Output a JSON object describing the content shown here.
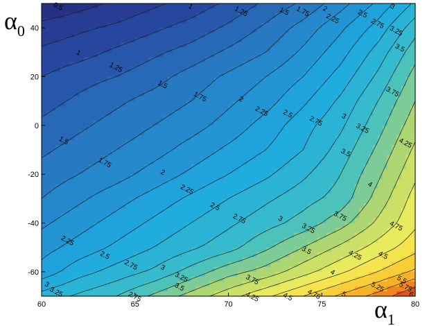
{
  "chart_data": {
    "type": "heatmap",
    "subtype": "filled-contour",
    "title": "",
    "xlabel": {
      "symbol": "α",
      "subscript": "1"
    },
    "ylabel": {
      "symbol": "α",
      "subscript": "0"
    },
    "xlim": [
      60,
      80
    ],
    "ylim": [
      -70,
      50
    ],
    "x_ticks": [
      60,
      65,
      70,
      75,
      80
    ],
    "y_ticks": [
      40,
      20,
      0,
      -20,
      -40,
      -60
    ],
    "grid": false,
    "legend": "none",
    "colormap": "jet",
    "contour_levels": [
      0.5,
      0.75,
      1,
      1.25,
      1.5,
      1.75,
      2,
      2.25,
      2.5,
      2.75,
      3,
      3.25,
      3.5,
      3.75,
      4,
      4.25,
      4.5,
      4.75,
      5,
      5.25,
      5.5,
      5.75,
      6
    ],
    "grid_x": [
      60,
      62,
      64,
      66,
      68,
      70,
      72,
      74,
      76,
      78,
      80
    ],
    "grid_y": [
      -70,
      -60,
      -50,
      -40,
      -30,
      -20,
      -10,
      0,
      10,
      20,
      30,
      40,
      50
    ],
    "z_values": [
      [
        3.1,
        3.3,
        3.5,
        3.8,
        4.1,
        4.4,
        4.7,
        5.0,
        5.3,
        5.6,
        6.0
      ],
      [
        2.6,
        2.9,
        3.1,
        3.3,
        3.6,
        3.9,
        4.1,
        4.4,
        4.7,
        5.0,
        5.3
      ],
      [
        2.4,
        2.6,
        2.8,
        3.0,
        3.2,
        3.4,
        3.7,
        4.0,
        4.3,
        4.6,
        4.9
      ],
      [
        2.2,
        2.4,
        2.6,
        2.8,
        3.0,
        3.2,
        3.4,
        3.6,
        3.9,
        4.3,
        4.7
      ],
      [
        2.0,
        2.2,
        2.4,
        2.6,
        2.8,
        3.0,
        3.2,
        3.4,
        3.6,
        4.1,
        4.6
      ],
      [
        1.85,
        2.0,
        2.15,
        2.35,
        2.55,
        2.75,
        2.95,
        3.2,
        3.5,
        3.95,
        4.45
      ],
      [
        1.7,
        1.85,
        2.0,
        2.15,
        2.35,
        2.55,
        2.75,
        3.0,
        3.35,
        3.8,
        4.3
      ],
      [
        1.55,
        1.7,
        1.85,
        2.0,
        2.15,
        2.35,
        2.6,
        2.9,
        3.2,
        3.65,
        4.15
      ],
      [
        1.4,
        1.55,
        1.7,
        1.85,
        2.0,
        2.2,
        2.4,
        2.7,
        3.05,
        3.5,
        4.0
      ],
      [
        1.25,
        1.4,
        1.5,
        1.65,
        1.85,
        2.05,
        2.25,
        2.5,
        2.85,
        3.3,
        3.85
      ],
      [
        1.05,
        1.15,
        1.3,
        1.45,
        1.6,
        1.8,
        2.0,
        2.3,
        2.65,
        3.1,
        3.65
      ],
      [
        0.85,
        0.95,
        1.05,
        1.2,
        1.35,
        1.55,
        1.8,
        2.1,
        2.45,
        2.85,
        3.4
      ],
      [
        0.5,
        0.65,
        0.8,
        0.95,
        1.1,
        1.3,
        1.55,
        1.8,
        2.15,
        2.55,
        3.05
      ]
    ],
    "contour_labels": [
      {
        "text": "0.5",
        "x": 60.9,
        "y": 49
      },
      {
        "text": "1",
        "x": 68.0,
        "y": 49
      },
      {
        "text": "1.25",
        "x": 70.7,
        "y": 47
      },
      {
        "text": "1.5",
        "x": 73.0,
        "y": 47
      },
      {
        "text": "1.75",
        "x": 74.0,
        "y": 47
      },
      {
        "text": "2",
        "x": 75.2,
        "y": 48
      },
      {
        "text": "2.25",
        "x": 75.6,
        "y": 44
      },
      {
        "text": "2.5",
        "x": 77.2,
        "y": 46
      },
      {
        "text": "2.75",
        "x": 78.0,
        "y": 42
      },
      {
        "text": "3",
        "x": 78.8,
        "y": 49
      },
      {
        "text": "3.25",
        "x": 79.0,
        "y": 39
      },
      {
        "text": "3.5",
        "x": 79.2,
        "y": 32
      },
      {
        "text": "1",
        "x": 62.0,
        "y": 30
      },
      {
        "text": "1.25",
        "x": 64.0,
        "y": 24
      },
      {
        "text": "1.5",
        "x": 66.5,
        "y": 17
      },
      {
        "text": "1.75",
        "x": 68.5,
        "y": 12
      },
      {
        "text": "2",
        "x": 70.7,
        "y": 11
      },
      {
        "text": "2.25",
        "x": 71.8,
        "y": 6
      },
      {
        "text": "2.5",
        "x": 73.2,
        "y": 5
      },
      {
        "text": "2.75",
        "x": 74.7,
        "y": 2
      },
      {
        "text": "3",
        "x": 76.2,
        "y": 4
      },
      {
        "text": "3.25",
        "x": 77.2,
        "y": -1
      },
      {
        "text": "3.75",
        "x": 78.8,
        "y": 14
      },
      {
        "text": "1.5",
        "x": 61.2,
        "y": -6
      },
      {
        "text": "1.75",
        "x": 63.4,
        "y": -15
      },
      {
        "text": "2",
        "x": 66.5,
        "y": -19
      },
      {
        "text": "2.25",
        "x": 67.8,
        "y": -26
      },
      {
        "text": "2.5",
        "x": 69.3,
        "y": -33
      },
      {
        "text": "2.75",
        "x": 70.6,
        "y": -38
      },
      {
        "text": "3",
        "x": 72.8,
        "y": -38
      },
      {
        "text": "3.25",
        "x": 74.3,
        "y": -42
      },
      {
        "text": "3.5",
        "x": 76.3,
        "y": -11
      },
      {
        "text": "4.25",
        "x": 79.5,
        "y": -7
      },
      {
        "text": "4",
        "x": 77.6,
        "y": -24
      },
      {
        "text": "3.75",
        "x": 76.0,
        "y": -37
      },
      {
        "text": "4.75",
        "x": 79.0,
        "y": -41
      },
      {
        "text": "2.25",
        "x": 61.4,
        "y": -47
      },
      {
        "text": "2.5",
        "x": 63.4,
        "y": -53
      },
      {
        "text": "2.75",
        "x": 64.8,
        "y": -57
      },
      {
        "text": "3",
        "x": 66.5,
        "y": -58
      },
      {
        "text": "3.25",
        "x": 67.5,
        "y": -62
      },
      {
        "text": "3.5",
        "x": 67.4,
        "y": -66
      },
      {
        "text": "3.5",
        "x": 74.2,
        "y": -51
      },
      {
        "text": "3.75",
        "x": 71.3,
        "y": -63
      },
      {
        "text": "4",
        "x": 75.6,
        "y": -60
      },
      {
        "text": "4.25",
        "x": 76.8,
        "y": -53
      },
      {
        "text": "4.5",
        "x": 78.3,
        "y": -53
      },
      {
        "text": "4.75",
        "x": 74.6,
        "y": -69
      },
      {
        "text": "5",
        "x": 76.2,
        "y": -69
      },
      {
        "text": "5.25",
        "x": 78.0,
        "y": -66
      },
      {
        "text": "3",
        "x": 60.3,
        "y": -65
      },
      {
        "text": "3.25",
        "x": 60.8,
        "y": -68
      },
      {
        "text": "2.75",
        "x": 65.0,
        "y": -70
      },
      {
        "text": "4.25",
        "x": 71.3,
        "y": -70
      },
      {
        "text": "4.5",
        "x": 73.2,
        "y": -70
      },
      {
        "text": "5.5",
        "x": 79.3,
        "y": -63
      },
      {
        "text": "5.75",
        "x": 79.5,
        "y": -66
      },
      {
        "text": "6",
        "x": 79.8,
        "y": -69
      }
    ]
  }
}
